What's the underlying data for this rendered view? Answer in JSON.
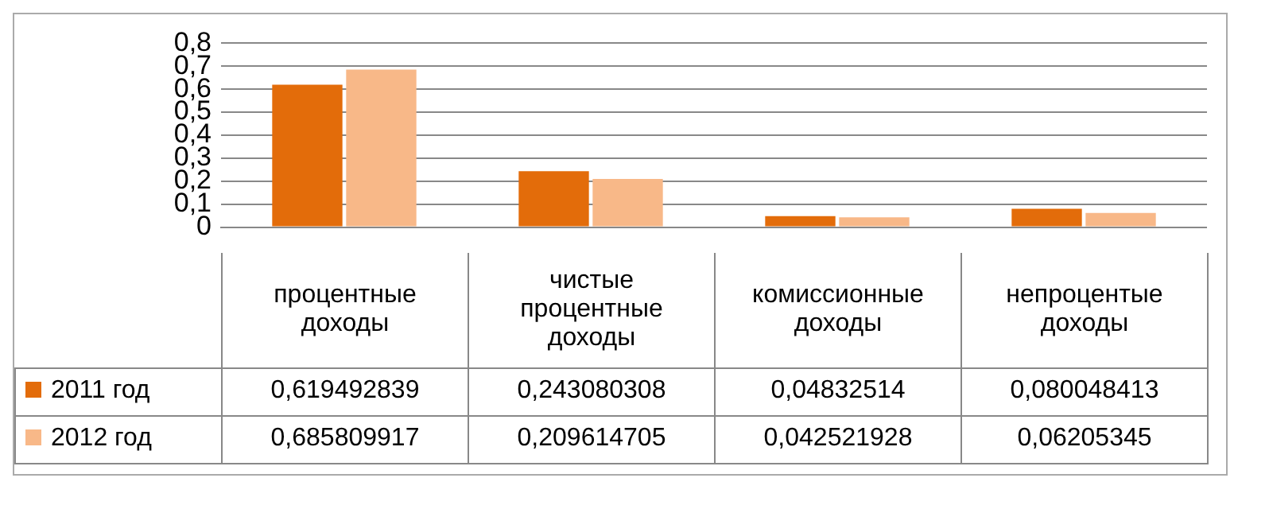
{
  "chart_data": {
    "type": "bar",
    "categories": [
      "процентные доходы",
      "чистые процентные доходы",
      "комиссионные доходы",
      "непроцентые доходы"
    ],
    "series": [
      {
        "name": "2011 год",
        "color": "#e36c0a",
        "values": [
          0.619492839,
          0.243080308,
          0.04832514,
          0.080048413
        ],
        "value_labels": [
          "0,619492839",
          "0,243080308",
          "0,04832514",
          "0,080048413"
        ]
      },
      {
        "name": "2012 год",
        "color": "#f8b888",
        "values": [
          0.685809917,
          0.209614705,
          0.042521928,
          0.06205345
        ],
        "value_labels": [
          "0,685809917",
          "0,209614705",
          "0,042521928",
          "0,06205345"
        ]
      }
    ],
    "ylim": [
      0,
      0.8
    ],
    "yticks": [
      {
        "value": 0,
        "label": "0"
      },
      {
        "value": 0.1,
        "label": "0,1"
      },
      {
        "value": 0.2,
        "label": "0,2"
      },
      {
        "value": 0.3,
        "label": "0,3"
      },
      {
        "value": 0.4,
        "label": "0,4"
      },
      {
        "value": 0.5,
        "label": "0,5"
      },
      {
        "value": 0.6,
        "label": "0,6"
      },
      {
        "value": 0.7,
        "label": "0,7"
      },
      {
        "value": 0.8,
        "label": "0,8"
      }
    ],
    "grid": "y",
    "legend": "bottom"
  }
}
